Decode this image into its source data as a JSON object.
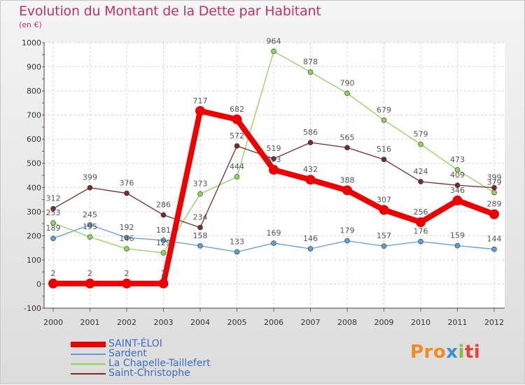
{
  "header": {
    "title": "Evolution du Montant de la Dette par Habitant",
    "subtitle": "(en €)"
  },
  "logo": {
    "text": "Proxiti",
    "colors": [
      "#f08a24",
      "#3a8fd8",
      "#7cc242",
      "#e8423c"
    ]
  },
  "chart_data": {
    "type": "line",
    "title": "Evolution du Montant de la Dette par Habitant",
    "subtitle": "(en €)",
    "xlabel": "",
    "ylabel": "",
    "categories": [
      "2000",
      "2001",
      "2002",
      "2003",
      "2004",
      "2005",
      "2006",
      "2007",
      "2008",
      "2009",
      "2010",
      "2011",
      "2012"
    ],
    "ylim": [
      -100,
      1000
    ],
    "yticks": [
      -100,
      0,
      100,
      200,
      300,
      400,
      500,
      600,
      700,
      800,
      900,
      1000
    ],
    "grid": true,
    "legend_position": "bottom-left",
    "series": [
      {
        "name": "SAINT-ÉLOI",
        "color": "#ee0000",
        "values": [
          2,
          2,
          2,
          2,
          717,
          682,
          473,
          432,
          388,
          307,
          256,
          346,
          289
        ],
        "labels": [
          "2",
          "2",
          "2",
          "2",
          "717",
          "682",
          "473",
          "432",
          "388",
          "307",
          "256",
          "346",
          "289"
        ]
      },
      {
        "name": "Sardent",
        "color": "#5a9fd6",
        "values": [
          189,
          245,
          192,
          181,
          158,
          133,
          169,
          146,
          179,
          157,
          176,
          159,
          144
        ],
        "labels": [
          "189",
          "245",
          "192",
          "181",
          "158",
          "133",
          "169",
          "146",
          "179",
          "157",
          "176",
          "159",
          "144"
        ]
      },
      {
        "name": "La Chapelle-Taillefert",
        "color": "#8ed35a",
        "values": [
          253,
          195,
          146,
          129,
          373,
          444,
          964,
          878,
          790,
          679,
          579,
          473,
          379
        ],
        "labels": [
          "253",
          "195",
          "146",
          "129",
          "373",
          "444",
          "964",
          "878",
          "790",
          "679",
          "579",
          "473",
          "379"
        ]
      },
      {
        "name": "Saint-Christophe",
        "color": "#7a2a2a",
        "values": [
          312,
          399,
          376,
          286,
          234,
          572,
          519,
          586,
          565,
          516,
          424,
          409,
          399
        ],
        "labels": [
          "312",
          "399",
          "376",
          "286",
          "234",
          "572",
          "519",
          "586",
          "565",
          "516",
          "424",
          "409",
          "399"
        ]
      }
    ]
  }
}
